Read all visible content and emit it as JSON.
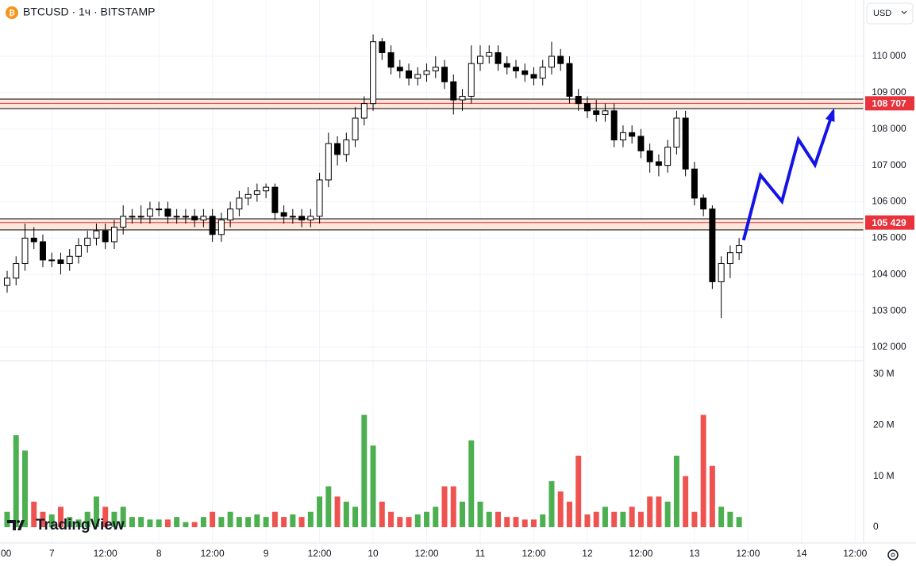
{
  "chart_data": {
    "type": "candlestick",
    "title": "BTCUSD · 1ч · BITSTAMP",
    "currency": "USD",
    "watermark": "TradingView",
    "x": [
      -10,
      -8,
      -6,
      -4,
      -2,
      0,
      2,
      4,
      6,
      8,
      10,
      12,
      14,
      16,
      18,
      20,
      22,
      24,
      26,
      28,
      30,
      32,
      34,
      36,
      38,
      40,
      42,
      44,
      46,
      48,
      50,
      52,
      54,
      56,
      58,
      60,
      62,
      64,
      66,
      68,
      70,
      72,
      74,
      76,
      78,
      80,
      82,
      84,
      86,
      88,
      90,
      92,
      94,
      96,
      98,
      100,
      102,
      104,
      106,
      108,
      110,
      112,
      114,
      116,
      118,
      120,
      122,
      124,
      126,
      128,
      130,
      132,
      134,
      136,
      138,
      140,
      142,
      144,
      146,
      148,
      150,
      152,
      154
    ],
    "open": [
      103700,
      103900,
      104300,
      105000,
      104900,
      104400,
      104400,
      104300,
      104500,
      104800,
      105000,
      105200,
      104900,
      105300,
      105600,
      105600,
      105600,
      105800,
      105800,
      105600,
      105600,
      105600,
      105500,
      105600,
      105100,
      105500,
      105800,
      106100,
      106200,
      106300,
      106400,
      105700,
      105600,
      105600,
      105500,
      105600,
      106600,
      107600,
      107300,
      107700,
      108300,
      108700,
      110400,
      110100,
      109700,
      109600,
      109400,
      109500,
      109600,
      109700,
      109300,
      108800,
      108900,
      109800,
      110000,
      110100,
      109800,
      109700,
      109600,
      109500,
      109400,
      109700,
      110000,
      109800,
      108900,
      108700,
      108500,
      108400,
      108500,
      107700,
      107900,
      107800,
      107400,
      107100,
      107000,
      107500,
      108300,
      106900,
      106100,
      105800,
      103800,
      104300,
      104600
    ],
    "high": [
      104100,
      104500,
      105400,
      105300,
      105100,
      104600,
      104600,
      104700,
      105000,
      105200,
      105400,
      105400,
      105500,
      105900,
      105800,
      105900,
      106000,
      106000,
      106000,
      105800,
      105800,
      105800,
      105800,
      105800,
      105700,
      106000,
      106300,
      106400,
      106500,
      106500,
      106500,
      105900,
      105800,
      105800,
      105800,
      106800,
      107900,
      107800,
      107900,
      108600,
      108900,
      110600,
      110500,
      110300,
      109900,
      109800,
      109700,
      109800,
      110000,
      109900,
      109500,
      109100,
      110300,
      110300,
      110300,
      110300,
      110000,
      109900,
      109800,
      109700,
      109900,
      110400,
      110200,
      110000,
      109100,
      108900,
      108800,
      108700,
      108700,
      108100,
      108100,
      108000,
      107600,
      107300,
      107700,
      108500,
      108500,
      107100,
      106200,
      105900,
      104500,
      104800,
      105000
    ],
    "low": [
      103500,
      103700,
      104100,
      104700,
      104200,
      104200,
      104000,
      104100,
      104300,
      104600,
      104800,
      104700,
      104700,
      105100,
      105400,
      105400,
      105400,
      105600,
      105400,
      105400,
      105400,
      105300,
      105300,
      104900,
      104900,
      105300,
      105600,
      105900,
      106000,
      106100,
      105500,
      105400,
      105400,
      105300,
      105300,
      105400,
      106400,
      107000,
      107100,
      107500,
      108100,
      108500,
      109900,
      109500,
      109400,
      109200,
      109200,
      109300,
      109400,
      109100,
      108400,
      108500,
      108700,
      109600,
      109800,
      109600,
      109500,
      109400,
      109300,
      109200,
      109200,
      109500,
      109600,
      108700,
      108500,
      108300,
      108200,
      108200,
      107500,
      107500,
      107600,
      107200,
      106800,
      106700,
      106800,
      107300,
      106700,
      105900,
      105600,
      103600,
      102800,
      103900,
      104400
    ],
    "close": [
      103900,
      104300,
      105000,
      104900,
      104400,
      104400,
      104300,
      104500,
      104800,
      105000,
      105200,
      104900,
      105300,
      105600,
      105600,
      105600,
      105800,
      105800,
      105600,
      105600,
      105600,
      105500,
      105600,
      105100,
      105500,
      105800,
      106100,
      106200,
      106300,
      106400,
      105700,
      105600,
      105600,
      105500,
      105600,
      106600,
      107600,
      107300,
      107700,
      108300,
      108700,
      110400,
      110100,
      109700,
      109600,
      109400,
      109500,
      109600,
      109700,
      109300,
      108800,
      108900,
      109800,
      110000,
      110100,
      109800,
      109700,
      109600,
      109500,
      109400,
      109700,
      110000,
      109800,
      108900,
      108700,
      108500,
      108400,
      108500,
      107700,
      107900,
      107800,
      107400,
      107100,
      107000,
      107500,
      108300,
      106900,
      106100,
      105800,
      103800,
      104300,
      104600,
      104800
    ],
    "up_color": "#ffffff",
    "down_color": "#000000",
    "candle_outline": "#000000",
    "xlim": [
      -11.6,
      181.9
    ],
    "xticks": [
      {
        "value": -12,
        "label": "00"
      },
      {
        "value": 0,
        "label": "7"
      },
      {
        "value": 12,
        "label": "12:00"
      },
      {
        "value": 24,
        "label": "8"
      },
      {
        "value": 36,
        "label": "12:00"
      },
      {
        "value": 48,
        "label": "9"
      },
      {
        "value": 60,
        "label": "12:00"
      },
      {
        "value": 72,
        "label": "10"
      },
      {
        "value": 84,
        "label": "12:00"
      },
      {
        "value": 96,
        "label": "11"
      },
      {
        "value": 108,
        "label": "12:00"
      },
      {
        "value": 120,
        "label": "12"
      },
      {
        "value": 132,
        "label": "12:00"
      },
      {
        "value": 144,
        "label": "13"
      },
      {
        "value": 156,
        "label": "12:00"
      },
      {
        "value": 168,
        "label": "14"
      },
      {
        "value": 180,
        "label": "12:00"
      }
    ],
    "ylim": [
      101629,
      111548
    ],
    "yticks": [
      {
        "value": 102000,
        "label": "102 000"
      },
      {
        "value": 103000,
        "label": "103 000"
      },
      {
        "value": 104000,
        "label": "104 000"
      },
      {
        "value": 105000,
        "label": "105 000"
      },
      {
        "value": 106000,
        "label": "106 000"
      },
      {
        "value": 107000,
        "label": "107 000"
      },
      {
        "value": 108000,
        "label": "108 000"
      },
      {
        "value": 109000,
        "label": "109 000"
      },
      {
        "value": 110000,
        "label": "110 000"
      }
    ],
    "grid": true,
    "zones": [
      {
        "value": 108707,
        "label": "108 707",
        "low": 108561,
        "high": 108823
      },
      {
        "value": 105429,
        "label": "105 429",
        "low": 105226,
        "high": 105531
      }
    ],
    "zone_color": "#e8323c",
    "projection": {
      "color": "#1414e6",
      "x": [
        155.0,
        158.8,
        163.6,
        167.3,
        171.0,
        175.1
      ],
      "values": [
        104943,
        106730,
        106011,
        107711,
        107014,
        108496
      ]
    },
    "volume": {
      "values": [
        3,
        18,
        15,
        5,
        3,
        2.5,
        4,
        2,
        1.5,
        3,
        6,
        4,
        3,
        4,
        2,
        2,
        1.5,
        1.5,
        1.5,
        2,
        1,
        1,
        2,
        3,
        2,
        3,
        2,
        2,
        2.5,
        2,
        3,
        2,
        2.5,
        2,
        3,
        6,
        8,
        6,
        5,
        4,
        22,
        16,
        5,
        3,
        2,
        2,
        2.5,
        3,
        4,
        8,
        8,
        5,
        17,
        5,
        3,
        3,
        2,
        2,
        1.5,
        1.5,
        2.5,
        9,
        7,
        5,
        14,
        2.5,
        3,
        4,
        3,
        3,
        4,
        3,
        6,
        6,
        5,
        14,
        10,
        3,
        22,
        12,
        4,
        3,
        2
      ],
      "ylim": [
        -3.1,
        32.6
      ],
      "yticks": [
        0,
        {
          "value": 10,
          "label": "10 M"
        },
        {
          "value": 20,
          "label": "20 M"
        },
        {
          "value": 30,
          "label": "30 M"
        }
      ],
      "up_color": "#4caf50",
      "down_color": "#ef5350"
    }
  }
}
